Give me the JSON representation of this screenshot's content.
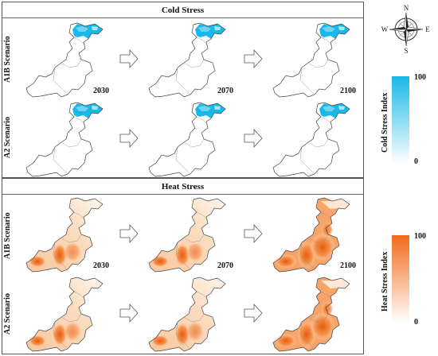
{
  "cold_panel": {
    "title": "Cold Stress",
    "rows": [
      {
        "label": "A1B Scenario",
        "years": [
          "2030",
          "2070",
          "2100"
        ]
      },
      {
        "label": "A2 Scenario",
        "years": []
      }
    ]
  },
  "heat_panel": {
    "title": "Heat Stress",
    "rows": [
      {
        "label": "A1B Scenario",
        "years": [
          "2030",
          "2070",
          "2100"
        ]
      },
      {
        "label": "A2 Scenario",
        "years": []
      }
    ]
  },
  "compass": {
    "n": "N",
    "s": "S",
    "e": "E",
    "w": "W"
  },
  "cold_legend": {
    "title": "Cold Stress Index",
    "max": "100",
    "min": "0",
    "color_max": "#1ab8e8",
    "color_min": "#ffffff"
  },
  "heat_legend": {
    "title": "Heat Stress Index",
    "max": "100",
    "min": "0",
    "color_max": "#f26a1b",
    "color_min": "#ffffff"
  }
}
